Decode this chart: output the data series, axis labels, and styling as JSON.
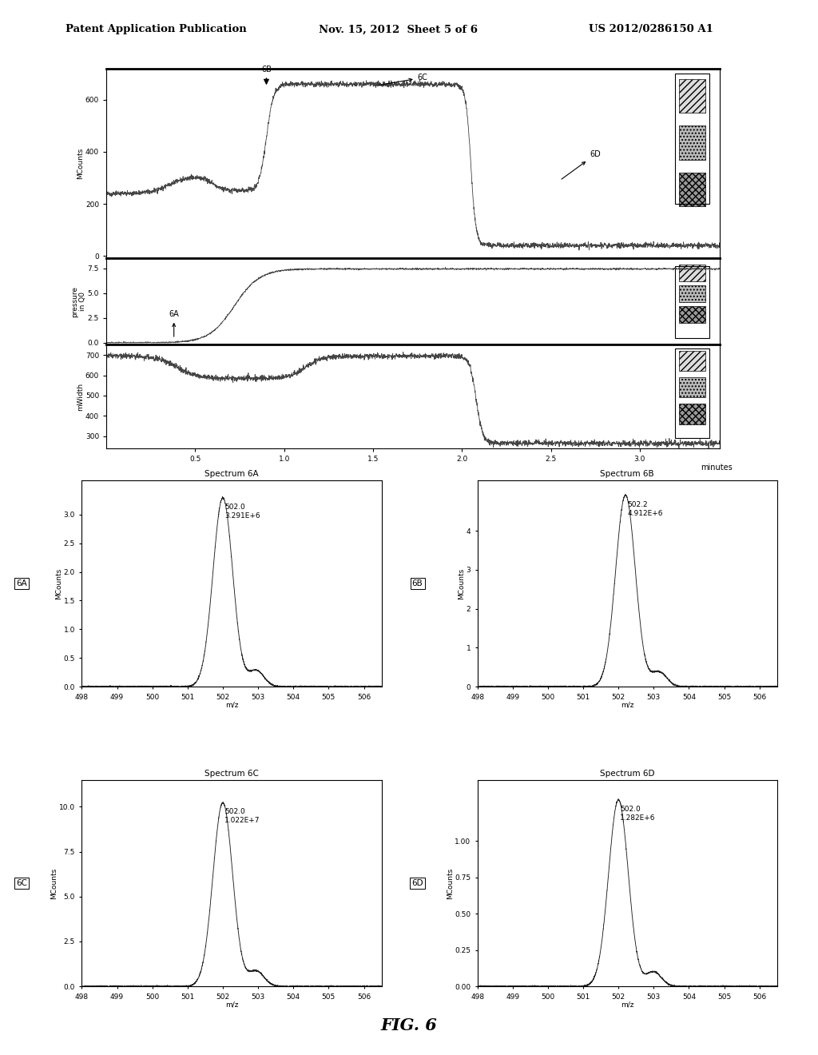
{
  "header_left": "Patent Application Publication",
  "header_mid": "Nov. 15, 2012  Sheet 5 of 6",
  "header_right": "US 2012/0286150 A1",
  "fig_label": "FIG. 6",
  "bg_color": "#ffffff",
  "line_color": "#444444",
  "dark_color": "#222222"
}
